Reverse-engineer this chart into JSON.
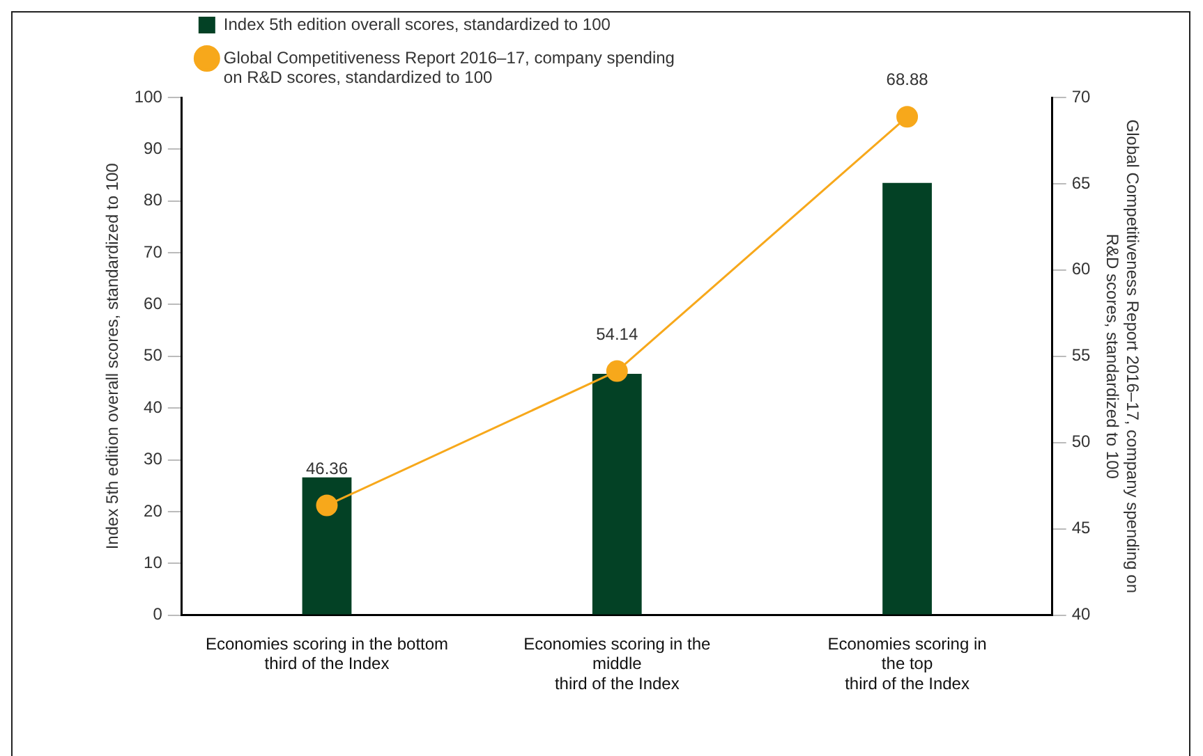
{
  "chart_data": {
    "type": "bar",
    "ylabel": "Index 5th edition overall scores, standardized to 100",
    "y2label": "Global Competitiveness Report 2016–17, company spending on\nR&D scores, standardized to 100",
    "categories": [
      "Economies scoring in the bottom\nthird of the Index",
      "Economies scoring in the\nmiddle\nthird of the Index",
      "Economies scoring in\nthe top\nthird of the Index"
    ],
    "series": [
      {
        "name": "Index 5th edition overall scores, standardized to 100",
        "color": "#034125",
        "values": [
          26.6,
          46.6,
          83.5
        ]
      },
      {
        "type": "line",
        "axis": "y2",
        "name": "Global Competitiveness Report 2016–17, company spending on R&D scores, standardized to 100",
        "color": "#f7a81b",
        "values": [
          46.36,
          54.14,
          68.88
        ],
        "value_labels": [
          "46.36",
          "54.14",
          "68.88"
        ]
      }
    ],
    "ylim": [
      0,
      100
    ],
    "yticks": [
      0,
      10,
      20,
      30,
      40,
      50,
      60,
      70,
      80,
      90,
      100
    ],
    "y2lim": [
      40,
      70
    ],
    "y2ticks": [
      40,
      45,
      50,
      55,
      60,
      65,
      70
    ],
    "grid": false,
    "legend": "top left",
    "marker": "circle"
  }
}
